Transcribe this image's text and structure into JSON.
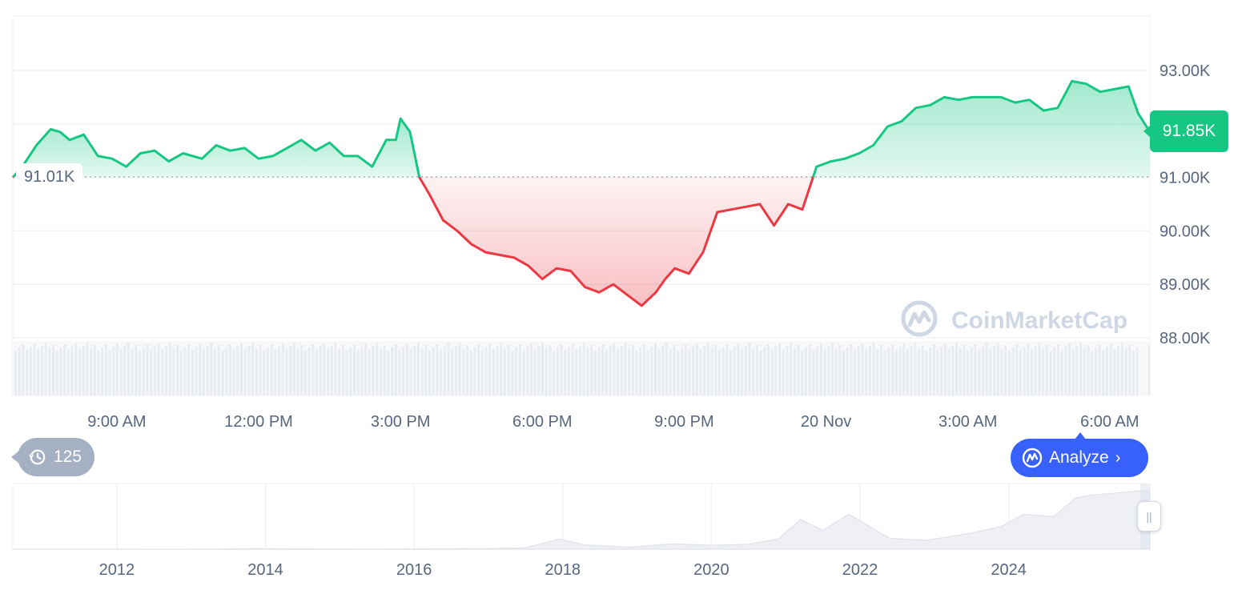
{
  "chart_data": [
    {
      "type": "area",
      "title": "",
      "xlabel": "",
      "ylabel": "",
      "baseline": 91.01,
      "baseline_label": "91.01K",
      "current_price_label": "91.85K",
      "y_unit": "K",
      "ylim": [
        87.0,
        94.0
      ],
      "y_ticks": [
        88,
        89,
        90,
        91,
        92,
        93
      ],
      "y_tick_labels": [
        "88.00K",
        "89.00K",
        "90.00K",
        "91.00K",
        "93.00K"
      ],
      "y_tick_label_values": [
        88,
        89,
        90,
        91,
        93
      ],
      "x_ticks": [
        "9:00 AM",
        "12:00 PM",
        "3:00 PM",
        "6:00 PM",
        "9:00 PM",
        "20 Nov",
        "3:00 AM",
        "6:00 AM"
      ],
      "x_tick_hours": [
        9,
        12,
        15,
        18,
        21,
        24,
        27,
        30
      ],
      "xlim_hours": [
        6.8,
        30.85
      ],
      "colors": {
        "up": "#16c784",
        "down": "#ea3943",
        "baseline": "#a6b0c3"
      },
      "series": [
        {
          "hours": [
            6.8,
            7.0,
            7.3,
            7.6,
            7.8,
            8.0,
            8.3,
            8.6,
            8.9,
            9.2,
            9.5,
            9.8,
            10.1,
            10.4,
            10.8,
            11.1,
            11.4,
            11.7,
            12.0,
            12.3,
            12.6,
            12.9,
            13.2,
            13.5,
            13.8,
            14.1,
            14.4,
            14.7,
            14.9,
            15.0,
            15.2,
            15.4,
            15.6,
            15.9,
            16.2,
            16.5,
            16.8,
            17.1,
            17.4,
            17.7,
            18.0,
            18.3,
            18.6,
            18.9,
            19.2,
            19.5,
            19.8,
            20.1,
            20.4,
            20.6,
            20.8,
            21.1,
            21.4,
            21.7,
            22.0,
            22.3,
            22.6,
            22.9,
            23.2,
            23.5,
            23.8,
            24.1,
            24.4,
            24.7,
            25.0,
            25.3,
            25.6,
            25.9,
            26.2,
            26.5,
            26.8,
            27.1,
            27.4,
            27.7,
            28.0,
            28.3,
            28.6,
            28.9,
            29.2,
            29.5,
            29.8,
            30.1,
            30.4,
            30.6,
            30.85
          ],
          "values": [
            91.0,
            91.2,
            91.6,
            91.9,
            91.85,
            91.7,
            91.8,
            91.4,
            91.35,
            91.2,
            91.45,
            91.5,
            91.3,
            91.45,
            91.35,
            91.6,
            91.5,
            91.55,
            91.35,
            91.4,
            91.55,
            91.7,
            91.5,
            91.65,
            91.4,
            91.4,
            91.2,
            91.7,
            91.7,
            92.1,
            91.85,
            91.0,
            90.7,
            90.2,
            90.0,
            89.75,
            89.6,
            89.55,
            89.5,
            89.35,
            89.1,
            89.3,
            89.25,
            88.95,
            88.85,
            89.0,
            88.8,
            88.6,
            88.85,
            89.1,
            89.3,
            89.2,
            89.6,
            90.35,
            90.4,
            90.45,
            90.5,
            90.1,
            90.5,
            90.4,
            91.2,
            91.3,
            91.35,
            91.45,
            91.6,
            91.95,
            92.05,
            92.3,
            92.35,
            92.5,
            92.45,
            92.5,
            92.5,
            92.5,
            92.4,
            92.45,
            92.25,
            92.3,
            92.8,
            92.75,
            92.6,
            92.65,
            92.7,
            92.2,
            91.85
          ]
        }
      ]
    },
    {
      "type": "area",
      "title": "",
      "xlabel": "",
      "ylabel": "",
      "x_ticks": [
        "2012",
        "2014",
        "2016",
        "2018",
        "2020",
        "2022",
        "2024"
      ],
      "x_tick_years": [
        2012,
        2014,
        2016,
        2018,
        2020,
        2022,
        2024
      ],
      "xlim_years": [
        2010.6,
        2025.9
      ],
      "ylim": [
        0,
        110000
      ],
      "series": [
        {
          "years": [
            2010.6,
            2012.0,
            2013.3,
            2013.9,
            2014.5,
            2015.5,
            2016.5,
            2017.0,
            2017.5,
            2017.95,
            2018.3,
            2018.9,
            2019.5,
            2020.0,
            2020.5,
            2020.9,
            2021.2,
            2021.5,
            2021.85,
            2022.4,
            2022.9,
            2023.5,
            2023.9,
            2024.2,
            2024.6,
            2024.9,
            2025.1,
            2025.5,
            2025.9
          ],
          "values": [
            0,
            10,
            100,
            800,
            500,
            250,
            650,
            1000,
            2500,
            19000,
            8000,
            3800,
            10000,
            7200,
            9200,
            19000,
            55000,
            35000,
            65000,
            20000,
            16500,
            30000,
            42000,
            65000,
            60000,
            95000,
            100000,
            105000,
            110000
          ]
        }
      ]
    }
  ],
  "history_badge": {
    "icon": "history-icon",
    "count": "125"
  },
  "analyze_button": {
    "label": "Analyze",
    "icon": "coinmarketcap-logo-icon"
  },
  "watermark": {
    "text": "CoinMarketCap"
  },
  "price_tag": {
    "label": "91.85K",
    "color": "#16c784"
  },
  "ref_tag": {
    "label": "91.01K"
  },
  "range_handle": {
    "icon": "pause-handle-icon",
    "glyph": "||"
  }
}
